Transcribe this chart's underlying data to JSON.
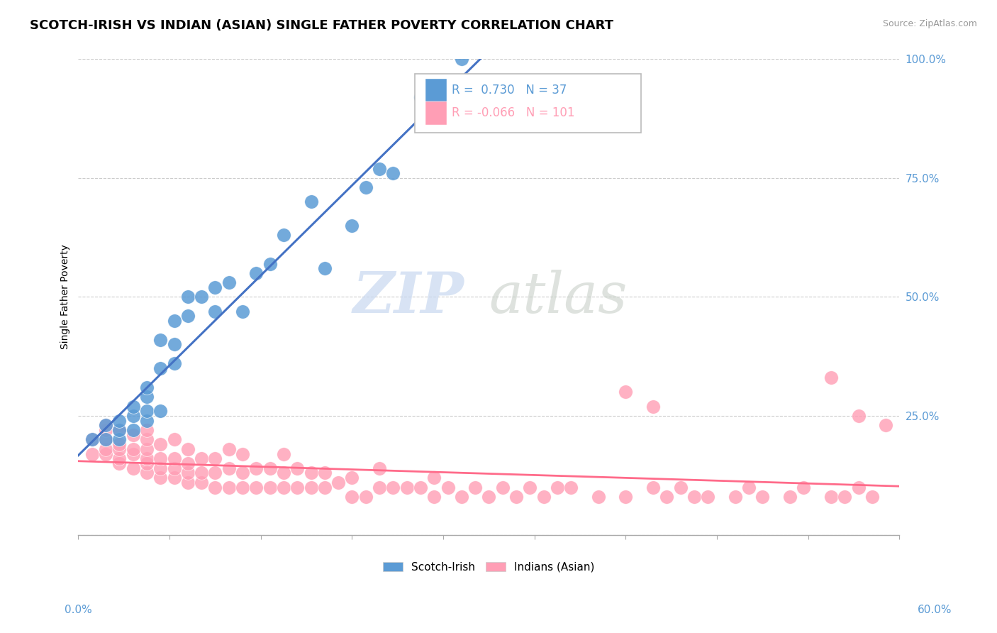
{
  "title": "SCOTCH-IRISH VS INDIAN (ASIAN) SINGLE FATHER POVERTY CORRELATION CHART",
  "source": "Source: ZipAtlas.com",
  "ylabel": "Single Father Poverty",
  "xlim": [
    0.0,
    0.6
  ],
  "ylim": [
    0.0,
    1.0
  ],
  "yticks": [
    0.0,
    0.25,
    0.5,
    0.75,
    1.0
  ],
  "ytick_labels": [
    "",
    "25.0%",
    "50.0%",
    "75.0%",
    "100.0%"
  ],
  "r_scotch_irish": 0.73,
  "n_scotch_irish": 37,
  "r_indian": -0.066,
  "n_indian": 101,
  "blue_color": "#5B9BD5",
  "pink_color": "#FF9EB5",
  "blue_line_color": "#4472C4",
  "pink_line_color": "#FF6B8A",
  "watermark_zip": "ZIP",
  "watermark_atlas": "atlas",
  "legend_label_1": "Scotch-Irish",
  "legend_label_2": "Indians (Asian)",
  "scotch_irish_x": [
    0.01,
    0.02,
    0.02,
    0.03,
    0.03,
    0.03,
    0.04,
    0.04,
    0.04,
    0.05,
    0.05,
    0.05,
    0.05,
    0.06,
    0.06,
    0.06,
    0.07,
    0.07,
    0.07,
    0.08,
    0.08,
    0.09,
    0.1,
    0.1,
    0.11,
    0.12,
    0.13,
    0.14,
    0.15,
    0.17,
    0.18,
    0.2,
    0.21,
    0.22,
    0.23,
    0.25,
    0.28
  ],
  "scotch_irish_y": [
    0.2,
    0.2,
    0.23,
    0.2,
    0.22,
    0.24,
    0.22,
    0.25,
    0.27,
    0.24,
    0.26,
    0.29,
    0.31,
    0.26,
    0.35,
    0.41,
    0.36,
    0.4,
    0.45,
    0.46,
    0.5,
    0.5,
    0.47,
    0.52,
    0.53,
    0.47,
    0.55,
    0.57,
    0.63,
    0.7,
    0.56,
    0.65,
    0.73,
    0.77,
    0.76,
    0.92,
    1.0
  ],
  "indian_x": [
    0.01,
    0.01,
    0.02,
    0.02,
    0.02,
    0.02,
    0.02,
    0.03,
    0.03,
    0.03,
    0.03,
    0.03,
    0.04,
    0.04,
    0.04,
    0.04,
    0.05,
    0.05,
    0.05,
    0.05,
    0.05,
    0.05,
    0.06,
    0.06,
    0.06,
    0.06,
    0.07,
    0.07,
    0.07,
    0.07,
    0.08,
    0.08,
    0.08,
    0.08,
    0.09,
    0.09,
    0.09,
    0.1,
    0.1,
    0.1,
    0.11,
    0.11,
    0.11,
    0.12,
    0.12,
    0.12,
    0.13,
    0.13,
    0.14,
    0.14,
    0.15,
    0.15,
    0.15,
    0.16,
    0.16,
    0.17,
    0.17,
    0.18,
    0.18,
    0.19,
    0.2,
    0.2,
    0.21,
    0.22,
    0.22,
    0.23,
    0.24,
    0.25,
    0.26,
    0.26,
    0.27,
    0.28,
    0.29,
    0.3,
    0.31,
    0.32,
    0.33,
    0.34,
    0.35,
    0.36,
    0.38,
    0.4,
    0.42,
    0.43,
    0.44,
    0.45,
    0.46,
    0.48,
    0.49,
    0.5,
    0.52,
    0.53,
    0.55,
    0.56,
    0.57,
    0.58,
    0.59,
    0.4,
    0.42,
    0.55,
    0.57
  ],
  "indian_y": [
    0.17,
    0.2,
    0.17,
    0.18,
    0.2,
    0.22,
    0.23,
    0.15,
    0.16,
    0.18,
    0.19,
    0.22,
    0.14,
    0.17,
    0.18,
    0.21,
    0.13,
    0.15,
    0.16,
    0.18,
    0.2,
    0.22,
    0.12,
    0.14,
    0.16,
    0.19,
    0.12,
    0.14,
    0.16,
    0.2,
    0.11,
    0.13,
    0.15,
    0.18,
    0.11,
    0.13,
    0.16,
    0.1,
    0.13,
    0.16,
    0.1,
    0.14,
    0.18,
    0.1,
    0.13,
    0.17,
    0.1,
    0.14,
    0.1,
    0.14,
    0.1,
    0.13,
    0.17,
    0.1,
    0.14,
    0.1,
    0.13,
    0.1,
    0.13,
    0.11,
    0.08,
    0.12,
    0.08,
    0.1,
    0.14,
    0.1,
    0.1,
    0.1,
    0.08,
    0.12,
    0.1,
    0.08,
    0.1,
    0.08,
    0.1,
    0.08,
    0.1,
    0.08,
    0.1,
    0.1,
    0.08,
    0.08,
    0.1,
    0.08,
    0.1,
    0.08,
    0.08,
    0.08,
    0.1,
    0.08,
    0.08,
    0.1,
    0.08,
    0.08,
    0.1,
    0.08,
    0.23,
    0.3,
    0.27,
    0.33,
    0.25
  ]
}
